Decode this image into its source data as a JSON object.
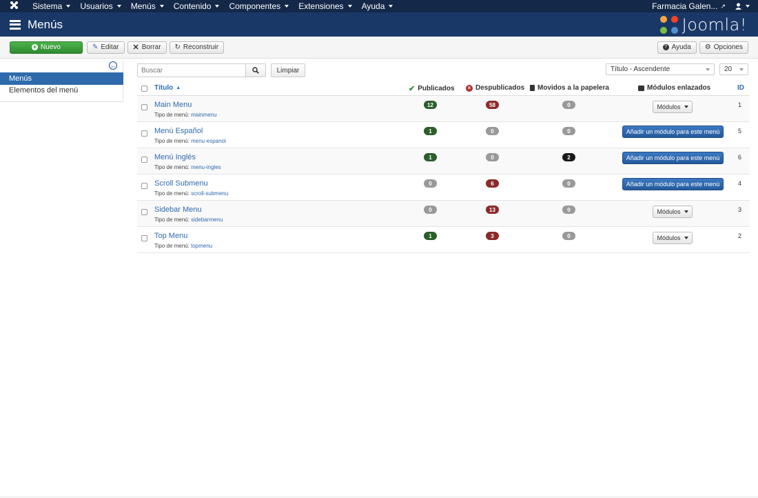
{
  "navbar": {
    "menus": [
      "Sistema",
      "Usuarios",
      "Menús",
      "Contenido",
      "Componentes",
      "Extensiones",
      "Ayuda"
    ],
    "site_name": "Farmacia Galen...",
    "logo_icon": "joomla-icon",
    "user_icon": "user-icon"
  },
  "header": {
    "title": "Menús",
    "brand": "Joomla!"
  },
  "toolbar": {
    "new_label": "Nuevo",
    "edit_label": "Editar",
    "delete_label": "Borrar",
    "rebuild_label": "Reconstruir",
    "help_label": "Ayuda",
    "options_label": "Opciones"
  },
  "sidebar": {
    "items": [
      {
        "label": "Menús",
        "active": true
      },
      {
        "label": "Elementos del menú",
        "active": false
      }
    ]
  },
  "filters": {
    "search_placeholder": "Buscar",
    "clear_label": "Limpiar",
    "ordering": "Título - Ascendente",
    "limit": "20"
  },
  "table": {
    "headers": {
      "title": "Título",
      "published": "Publicados",
      "unpublished": "Despublicados",
      "trashed": "Movidos a la papelera",
      "modules": "Módulos enlazados",
      "id": "ID"
    },
    "type_prefix": "Tipo de menú:",
    "modules_label": "Módulos",
    "add_module_label": "Añadir un módulo para este menú",
    "rows": [
      {
        "title": "Main Menu",
        "type": "mainmenu",
        "published": "12",
        "unpublished": "58",
        "trashed": "0",
        "has_modules": true,
        "id": "1"
      },
      {
        "title": "Menú Español",
        "type": "menu-espanol",
        "published": "1",
        "unpublished": "0",
        "trashed": "0",
        "has_modules": false,
        "id": "5"
      },
      {
        "title": "Menú Inglés",
        "type": "menu-ingles",
        "published": "1",
        "unpublished": "0",
        "trashed": "2",
        "has_modules": false,
        "id": "6"
      },
      {
        "title": "Scroll Submenu",
        "type": "scroll-submenu",
        "published": "0",
        "unpublished": "6",
        "trashed": "0",
        "has_modules": false,
        "id": "4"
      },
      {
        "title": "Sidebar Menu",
        "type": "sidebarmenu",
        "published": "0",
        "unpublished": "13",
        "trashed": "0",
        "has_modules": true,
        "id": "3"
      },
      {
        "title": "Top Menu",
        "type": "topmenu",
        "published": "1",
        "unpublished": "3",
        "trashed": "0",
        "has_modules": true,
        "id": "2"
      }
    ]
  },
  "colors": {
    "navbar": "#142849",
    "header": "#1a3867",
    "success": "#2f8a2f",
    "published_badge": "#2c5e2c",
    "unpublished_badge": "#8b2a2a",
    "trashed_badge": "#1a1a1a",
    "zero_badge": "#999999",
    "link": "#2f6aad"
  }
}
